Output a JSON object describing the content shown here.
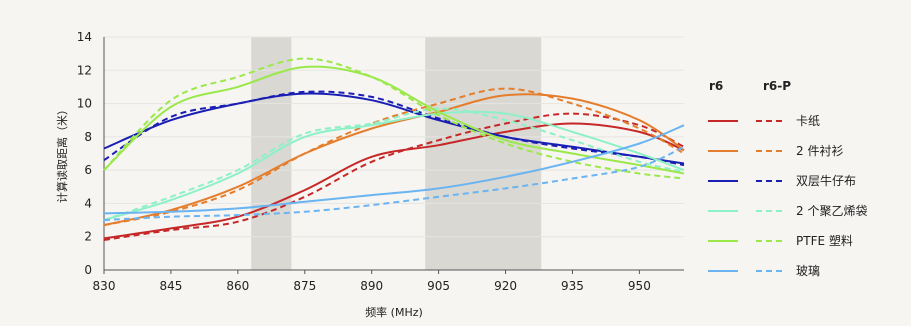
{
  "chart_data": {
    "type": "line",
    "xlabel": "频率 (MHz)",
    "ylabel": "计算读取距离（米）",
    "xlim": [
      830,
      960
    ],
    "ylim": [
      0,
      14
    ],
    "xticks": [
      830,
      845,
      860,
      875,
      890,
      905,
      920,
      935,
      950
    ],
    "yticks": [
      0,
      2,
      4,
      6,
      8,
      10,
      12,
      14
    ],
    "shaded_bands": [
      [
        863,
        872
      ],
      [
        902,
        928
      ]
    ],
    "grid": "horizontal",
    "legend_position": "right",
    "legend_headers": [
      "r6",
      "r6-P"
    ],
    "legend_entries": [
      {
        "label": "卡纸",
        "color": "#c62828"
      },
      {
        "label": "2 件衬衫",
        "color": "#e47d2c"
      },
      {
        "label": "双层牛仔布",
        "color": "#1a1fb3"
      },
      {
        "label": "2 个聚乙烯袋",
        "color": "#8ef0c6"
      },
      {
        "label": "PTFE 塑料",
        "color": "#9be84a"
      },
      {
        "label": "玻璃",
        "color": "#6ab4f2"
      }
    ],
    "x": [
      830,
      845,
      860,
      875,
      890,
      905,
      920,
      935,
      950,
      960
    ],
    "series": [
      {
        "name": "卡纸",
        "variant": "r6",
        "color": "#c62828",
        "dashed": false,
        "values": [
          1.9,
          2.5,
          3.2,
          4.8,
          6.8,
          7.5,
          8.3,
          8.8,
          8.3,
          7.2
        ]
      },
      {
        "name": "卡纸",
        "variant": "r6-P",
        "color": "#c62828",
        "dashed": true,
        "values": [
          1.8,
          2.4,
          2.9,
          4.4,
          6.5,
          7.8,
          8.8,
          9.4,
          8.7,
          7.4
        ]
      },
      {
        "name": "2 件衬衫",
        "variant": "r6",
        "color": "#e47d2c",
        "dashed": false,
        "values": [
          2.7,
          3.6,
          5.0,
          7.0,
          8.5,
          9.5,
          10.5,
          10.3,
          9.0,
          7.2
        ]
      },
      {
        "name": "2 件衬衫",
        "variant": "r6-P",
        "color": "#e47d2c",
        "dashed": true,
        "values": [
          2.7,
          3.5,
          4.8,
          7.0,
          8.8,
          10.0,
          10.9,
          10.0,
          8.5,
          7.0
        ]
      },
      {
        "name": "双层牛仔布",
        "variant": "r6",
        "color": "#1a1fb3",
        "dashed": false,
        "values": [
          7.3,
          9.0,
          10.0,
          10.6,
          10.2,
          9.0,
          8.0,
          7.4,
          6.8,
          6.4
        ]
      },
      {
        "name": "双层牛仔布",
        "variant": "r6-P",
        "color": "#1a1fb3",
        "dashed": true,
        "values": [
          6.6,
          9.2,
          10.0,
          10.7,
          10.4,
          9.1,
          8.0,
          7.3,
          6.8,
          6.3
        ]
      },
      {
        "name": "2 个聚乙烯袋",
        "variant": "r6",
        "color": "#8ef0c6",
        "dashed": false,
        "values": [
          3.0,
          4.2,
          5.8,
          8.0,
          8.7,
          9.4,
          9.4,
          8.3,
          7.0,
          6.0
        ]
      },
      {
        "name": "2 个聚乙烯袋",
        "variant": "r6-P",
        "color": "#8ef0c6",
        "dashed": true,
        "values": [
          3.0,
          4.4,
          6.0,
          8.2,
          8.8,
          9.7,
          9.0,
          7.8,
          6.5,
          5.9
        ]
      },
      {
        "name": "PTFE 塑料",
        "variant": "r6",
        "color": "#9be84a",
        "dashed": false,
        "values": [
          6.0,
          9.8,
          11.0,
          12.2,
          11.6,
          9.5,
          7.8,
          7.0,
          6.3,
          5.8
        ]
      },
      {
        "name": "PTFE 塑料",
        "variant": "r6-P",
        "color": "#9be84a",
        "dashed": true,
        "values": [
          6.0,
          10.2,
          11.6,
          12.7,
          11.6,
          9.3,
          7.6,
          6.5,
          5.8,
          5.5
        ]
      },
      {
        "name": "玻璃",
        "variant": "r6",
        "color": "#6ab4f2",
        "dashed": false,
        "values": [
          3.4,
          3.5,
          3.7,
          4.1,
          4.5,
          4.9,
          5.6,
          6.5,
          7.6,
          8.7
        ]
      },
      {
        "name": "玻璃",
        "variant": "r6-P",
        "color": "#6ab4f2",
        "dashed": true,
        "values": [
          3.0,
          3.2,
          3.3,
          3.5,
          3.9,
          4.4,
          4.9,
          5.5,
          6.2,
          7.4
        ]
      }
    ]
  }
}
